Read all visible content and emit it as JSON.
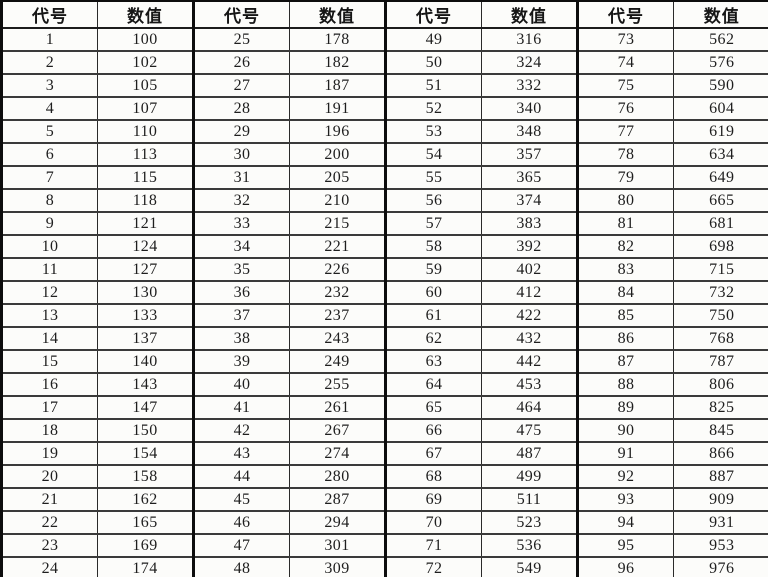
{
  "table": {
    "header_labels": [
      "代号",
      "数值",
      "代号",
      "数值",
      "代号",
      "数值",
      "代号",
      "数值"
    ],
    "rows": [
      [
        "1",
        "100",
        "25",
        "178",
        "49",
        "316",
        "73",
        "562"
      ],
      [
        "2",
        "102",
        "26",
        "182",
        "50",
        "324",
        "74",
        "576"
      ],
      [
        "3",
        "105",
        "27",
        "187",
        "51",
        "332",
        "75",
        "590"
      ],
      [
        "4",
        "107",
        "28",
        "191",
        "52",
        "340",
        "76",
        "604"
      ],
      [
        "5",
        "110",
        "29",
        "196",
        "53",
        "348",
        "77",
        "619"
      ],
      [
        "6",
        "113",
        "30",
        "200",
        "54",
        "357",
        "78",
        "634"
      ],
      [
        "7",
        "115",
        "31",
        "205",
        "55",
        "365",
        "79",
        "649"
      ],
      [
        "8",
        "118",
        "32",
        "210",
        "56",
        "374",
        "80",
        "665"
      ],
      [
        "9",
        "121",
        "33",
        "215",
        "57",
        "383",
        "81",
        "681"
      ],
      [
        "10",
        "124",
        "34",
        "221",
        "58",
        "392",
        "82",
        "698"
      ],
      [
        "11",
        "127",
        "35",
        "226",
        "59",
        "402",
        "83",
        "715"
      ],
      [
        "12",
        "130",
        "36",
        "232",
        "60",
        "412",
        "84",
        "732"
      ],
      [
        "13",
        "133",
        "37",
        "237",
        "61",
        "422",
        "85",
        "750"
      ],
      [
        "14",
        "137",
        "38",
        "243",
        "62",
        "432",
        "86",
        "768"
      ],
      [
        "15",
        "140",
        "39",
        "249",
        "63",
        "442",
        "87",
        "787"
      ],
      [
        "16",
        "143",
        "40",
        "255",
        "64",
        "453",
        "88",
        "806"
      ],
      [
        "17",
        "147",
        "41",
        "261",
        "65",
        "464",
        "89",
        "825"
      ],
      [
        "18",
        "150",
        "42",
        "267",
        "66",
        "475",
        "90",
        "845"
      ],
      [
        "19",
        "154",
        "43",
        "274",
        "67",
        "487",
        "91",
        "866"
      ],
      [
        "20",
        "158",
        "44",
        "280",
        "68",
        "499",
        "92",
        "887"
      ],
      [
        "21",
        "162",
        "45",
        "287",
        "69",
        "511",
        "93",
        "909"
      ],
      [
        "22",
        "165",
        "46",
        "294",
        "70",
        "523",
        "94",
        "931"
      ],
      [
        "23",
        "169",
        "47",
        "301",
        "71",
        "536",
        "95",
        "953"
      ],
      [
        "24",
        "174",
        "48",
        "309",
        "72",
        "549",
        "96",
        "976"
      ]
    ],
    "colors": {
      "border_heavy": "#0d0d0d",
      "border_light": "#3a3a3a",
      "text": "#1e1e1e",
      "background": "#fcfcfa"
    }
  }
}
